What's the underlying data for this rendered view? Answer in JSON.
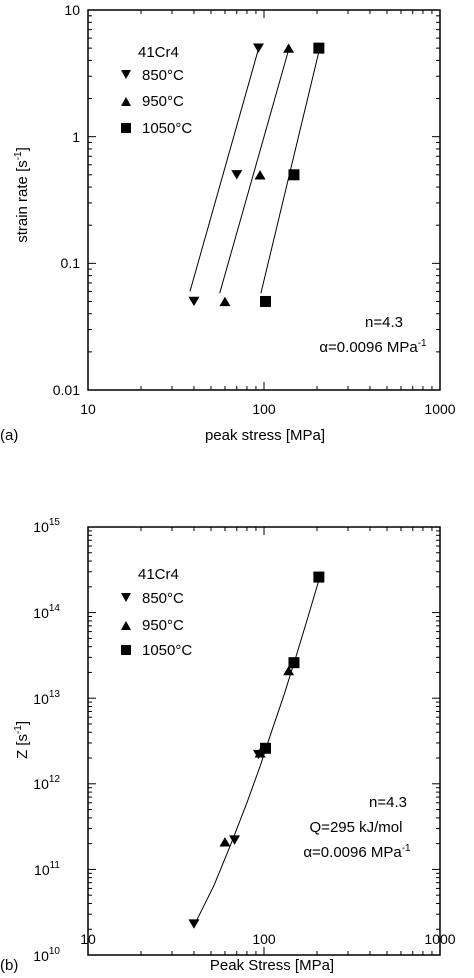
{
  "chart_data": [
    {
      "type": "scatter",
      "panel_label": "(a)",
      "title": "",
      "xlabel": "peak stress [MPa]",
      "ylabel_main": "strain rate [s",
      "ylabel_exp": "-1",
      "ylabel_close": "]",
      "xscale": "log",
      "yscale": "log",
      "xlim": [
        10,
        1000
      ],
      "ylim": [
        0.01,
        10
      ],
      "xticks": [
        10,
        100,
        1000
      ],
      "xtick_labels": [
        "10",
        "100",
        "1000"
      ],
      "yticks": [
        0.01,
        0.1,
        1,
        10
      ],
      "ytick_labels": [
        "0.01",
        "0.1",
        "1",
        "10"
      ],
      "legend_title": "41Cr4",
      "legend_position": "top-left",
      "series": [
        {
          "name": "850°C",
          "marker": "triangle-down",
          "x": [
            40,
            70,
            93
          ],
          "y": [
            0.05,
            0.5,
            5
          ]
        },
        {
          "name": "950°C",
          "marker": "triangle-up",
          "x": [
            60,
            95,
            138
          ],
          "y": [
            0.05,
            0.5,
            5
          ]
        },
        {
          "name": "1050°C",
          "marker": "square",
          "x": [
            102,
            148,
            205
          ],
          "y": [
            0.05,
            0.5,
            5
          ]
        }
      ],
      "fit_lines": [
        {
          "x": [
            38,
            94
          ],
          "y": [
            0.06,
            5.2
          ]
        },
        {
          "x": [
            56,
            140
          ],
          "y": [
            0.058,
            5.2
          ]
        },
        {
          "x": [
            96,
            208
          ],
          "y": [
            0.058,
            5.1
          ]
        }
      ],
      "annotations": {
        "n": "n=4.3",
        "alpha_prefix": "α=0.0096 MPa",
        "alpha_exp": "-1"
      }
    },
    {
      "type": "scatter",
      "panel_label": "(b)",
      "title": "",
      "xlabel": "Peak Stress [MPa]",
      "ylabel_main": "Z [s",
      "ylabel_exp": "-1",
      "ylabel_close": "]",
      "xscale": "log",
      "yscale": "log",
      "xlim": [
        10,
        1000
      ],
      "ylim": [
        10000000000.0,
        1000000000000000.0
      ],
      "xticks": [
        10,
        100,
        1000
      ],
      "xtick_labels": [
        "10",
        "100",
        "1000"
      ],
      "yticks": [
        10000000000.0,
        100000000000.0,
        1000000000000.0,
        10000000000000.0,
        100000000000000.0,
        1000000000000000.0
      ],
      "ytick_base": "10",
      "ytick_exps": [
        "10",
        "11",
        "12",
        "13",
        "14",
        "15"
      ],
      "legend_title": "41Cr4",
      "legend_position": "top-left",
      "series": [
        {
          "name": "850°C",
          "marker": "triangle-down",
          "x": [
            40,
            68,
            93
          ],
          "y": [
            23000000000.0,
            220000000000.0,
            2200000000000.0
          ]
        },
        {
          "name": "950°C",
          "marker": "triangle-up",
          "x": [
            60,
            95,
            138
          ],
          "y": [
            210000000000.0,
            2300000000000.0,
            21000000000000.0
          ]
        },
        {
          "name": "1050°C",
          "marker": "square",
          "x": [
            102,
            148,
            205
          ],
          "y": [
            2600000000000.0,
            26000000000000.0,
            260000000000000.0
          ]
        }
      ],
      "fit_line": {
        "x": [
          40,
          52,
          65,
          80,
          95,
          110,
          130,
          150,
          175,
          205
        ],
        "y": [
          22000000000.0,
          65000000000.0,
          200000000000.0,
          600000000000.0,
          1600000000000.0,
          4000000000000.0,
          11000000000000.0,
          28000000000000.0,
          80000000000000.0,
          240000000000000.0
        ]
      },
      "annotations": {
        "n": "n=4.3",
        "q": "Q=295 kJ/mol",
        "alpha_prefix": "α=0.0096 MPa",
        "alpha_exp": "-1"
      }
    }
  ]
}
